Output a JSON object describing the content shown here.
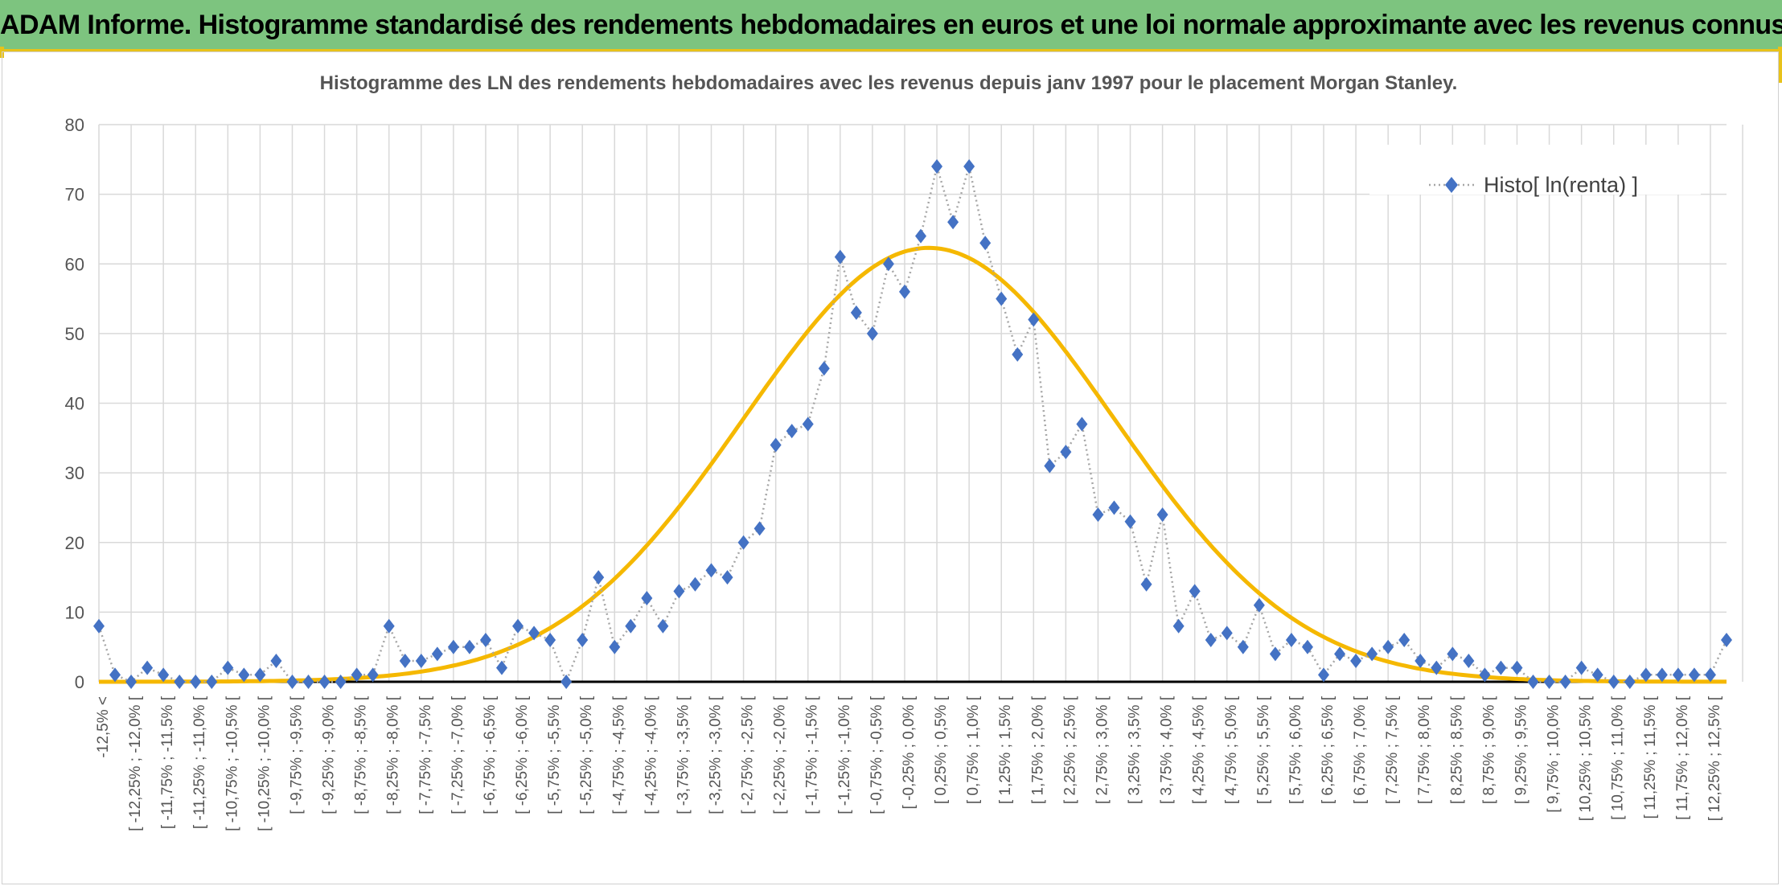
{
  "header": {
    "title": "ADAM Informe. Histogramme standardisé des rendements hebdomadaires en euros et une loi normale approximante avec les revenus connus distribués"
  },
  "chart_data": {
    "type": "line",
    "title": "Histogramme des LN des rendements hebdomadaires avec les revenus depuis janv 1997 pour le placement Morgan Stanley.",
    "xlabel": "",
    "ylabel": "",
    "ylim": [
      0,
      80
    ],
    "yticks": [
      "0",
      "10",
      "20",
      "30",
      "40",
      "50",
      "60",
      "70",
      "80"
    ],
    "grid": true,
    "legend_position": "top-right",
    "categories": [
      "-12,5% <",
      "[ -12,25% ; -12,0% [",
      "[ -11,75% ; -11,5% [",
      "[ -11,25% ; -11,0% [",
      "[ -10,75% ; -10,5% [",
      "[ -10,25% ; -10,0% [",
      "[ -9,75% ; -9,5% [",
      "[ -9,25% ; -9,0% [",
      "[ -8,75% ; -8,5% [",
      "[ -8,25% ; -8,0% [",
      "[ -7,75% ; -7,5% [",
      "[ -7,25% ; -7,0% [",
      "[ -6,75% ; -6,5% [",
      "[ -6,25% ; -6,0% [",
      "[ -5,75% ; -5,5% [",
      "[ -5,25% ; -5,0% [",
      "[ -4,75% ; -4,5% [",
      "[ -4,25% ; -4,0% [",
      "[ -3,75% ; -3,5% [",
      "[ -3,25% ; -3,0% [",
      "[ -2,75% ; -2,5% [",
      "[ -2,25% ; -2,0% [",
      "[ -1,75% ; -1,5% [",
      "[ -1,25% ; -1,0% [",
      "[ -0,75% ; -0,5% [",
      "[ -0,25% ; 0,0% [",
      "[ 0,25% ; 0,5% [",
      "[ 0,75% ; 1,0% [",
      "[ 1,25% ; 1,5% [",
      "[ 1,75% ; 2,0% [",
      "[ 2,25% ; 2,5% [",
      "[ 2,75% ; 3,0% [",
      "[ 3,25% ; 3,5% [",
      "[ 3,75% ; 4,0% [",
      "[ 4,25% ; 4,5% [",
      "[ 4,75% ; 5,0% [",
      "[ 5,25% ; 5,5% [",
      "[ 5,75% ; 6,0% [",
      "[ 6,25% ; 6,5% [",
      "[ 6,75% ; 7,0% [",
      "[ 7,25% ; 7,5% [",
      "[ 7,75% ; 8,0% [",
      "[ 8,25% ; 8,5% [",
      "[ 8,75% ; 9,0% [",
      "[ 9,25% ; 9,5% [",
      "[ 9,75% ; 10,0% [",
      "[ 10,25% ; 10,5% [",
      "[ 10,75% ; 11,0% [",
      "[ 11,25% ; 11,5% [",
      "[ 11,75% ; 12,0% [",
      "[ 12,25% ; 12,5% ["
    ],
    "series": [
      {
        "name": "Histo[ ln(renta) ]",
        "color": "#4472c4",
        "marker": "diamond",
        "line": "dotted-gray",
        "x": [
          0,
          1,
          2,
          3,
          4,
          5,
          6,
          7,
          8,
          9,
          10,
          11,
          12,
          13,
          14,
          15,
          16,
          17,
          18,
          19,
          20,
          21,
          22,
          23,
          24,
          25,
          26,
          27,
          28,
          29,
          30,
          31,
          32,
          33,
          34,
          35,
          36,
          37,
          38,
          39,
          40,
          41,
          42,
          43,
          44,
          45,
          46,
          47,
          48,
          49,
          50,
          51,
          52,
          53,
          54,
          55,
          56,
          57,
          58,
          59,
          60,
          61,
          62,
          63,
          64,
          65,
          66,
          67,
          68,
          69,
          70,
          71,
          72,
          73,
          74,
          75,
          76,
          77,
          78,
          79,
          80,
          81,
          82,
          83,
          84,
          85,
          86,
          87,
          88,
          89,
          90,
          91,
          92,
          93,
          94,
          95,
          96,
          97,
          98,
          99,
          100,
          101
        ],
        "values": [
          8,
          1,
          0,
          2,
          1,
          0,
          0,
          0,
          2,
          1,
          1,
          3,
          0,
          0,
          0,
          0,
          1,
          1,
          8,
          3,
          3,
          4,
          5,
          5,
          6,
          2,
          8,
          7,
          6,
          0,
          6,
          15,
          5,
          8,
          12,
          8,
          13,
          14,
          16,
          15,
          20,
          22,
          34,
          36,
          37,
          45,
          61,
          53,
          50,
          60,
          56,
          64,
          74,
          66,
          74,
          63,
          55,
          47,
          52,
          31,
          33,
          37,
          24,
          25,
          23,
          14,
          24,
          8,
          13,
          6,
          7,
          5,
          11,
          4,
          6,
          5,
          1,
          4,
          3,
          4,
          5,
          6,
          3,
          2,
          4,
          3,
          1,
          2,
          2,
          0,
          0,
          0,
          2,
          1,
          0,
          0,
          1,
          1,
          1,
          1,
          1,
          6
        ]
      },
      {
        "name": "",
        "color": "#f5b800",
        "type": "normal-fit",
        "peak": 62.3,
        "peak_x": 51.5,
        "sigma_x": 11.5
      }
    ]
  }
}
